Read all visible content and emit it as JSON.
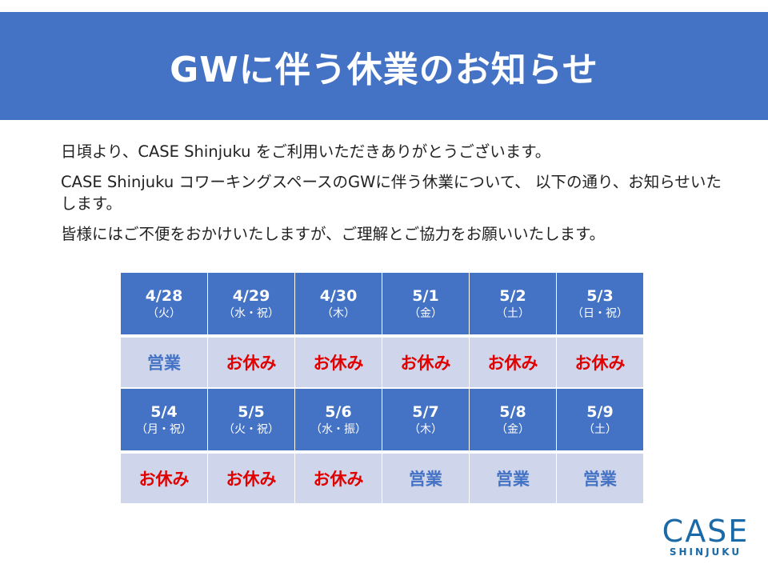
{
  "title": "GWに伴う休業のお知らせ",
  "paragraphs": [
    "日頃より、CASE Shinjuku をご利用いただきありがとうございます。",
    "CASE Shinjuku コワーキングスペースのGWに伴う休業について、 以下の通り、お知らせいたします。",
    "皆様にはご不便をおかけいたしますが、ご理解とご協力をお願いいたします。"
  ],
  "colors": {
    "header": "#4472c4",
    "cell": "#cfd5ea",
    "open": "#4472c4",
    "closed": "#e00000",
    "logo": "#1a6aa8"
  },
  "weeks": [
    {
      "days": [
        {
          "date": "4/28",
          "dow": "（火）",
          "status": "営業",
          "open": true
        },
        {
          "date": "4/29",
          "dow": "（水・祝）",
          "status": "お休み",
          "open": false
        },
        {
          "date": "4/30",
          "dow": "（木）",
          "status": "お休み",
          "open": false
        },
        {
          "date": "5/1",
          "dow": "（金）",
          "status": "お休み",
          "open": false
        },
        {
          "date": "5/2",
          "dow": "（土）",
          "status": "お休み",
          "open": false
        },
        {
          "date": "5/3",
          "dow": "（日・祝）",
          "status": "お休み",
          "open": false
        }
      ]
    },
    {
      "days": [
        {
          "date": "5/4",
          "dow": "（月・祝）",
          "status": "お休み",
          "open": false
        },
        {
          "date": "5/5",
          "dow": "（火・祝）",
          "status": "お休み",
          "open": false
        },
        {
          "date": "5/6",
          "dow": "（水・振）",
          "status": "お休み",
          "open": false
        },
        {
          "date": "5/7",
          "dow": "（木）",
          "status": "営業",
          "open": true
        },
        {
          "date": "5/8",
          "dow": "（金）",
          "status": "営業",
          "open": true
        },
        {
          "date": "5/9",
          "dow": "（土）",
          "status": "営業",
          "open": true
        }
      ]
    }
  ],
  "logo": {
    "line1": "CASE",
    "line2": "SHINJUKU"
  }
}
